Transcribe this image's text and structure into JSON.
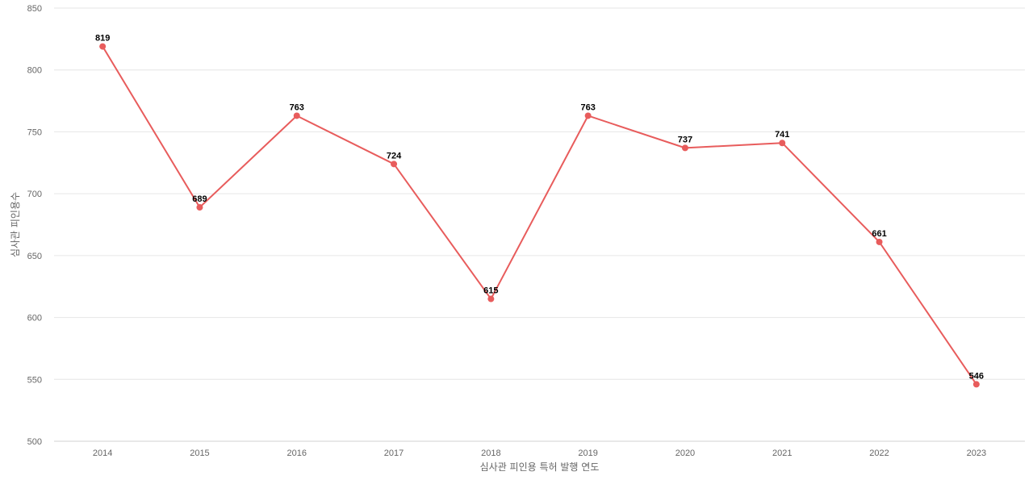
{
  "chart_data": {
    "type": "line",
    "title": "",
    "xlabel": "심사관 피인용 특허 발행 연도",
    "ylabel": "심사관 피인용수",
    "categories": [
      "2014",
      "2015",
      "2016",
      "2017",
      "2018",
      "2019",
      "2020",
      "2021",
      "2022",
      "2023"
    ],
    "series": [
      {
        "name": "",
        "values": [
          819,
          689,
          763,
          724,
          615,
          763,
          737,
          741,
          661,
          546
        ],
        "color": "#e85c5c"
      }
    ],
    "ylim": [
      500,
      850
    ],
    "yticks": [
      500,
      550,
      600,
      650,
      700,
      750,
      800,
      850
    ],
    "grid": true,
    "data_labels": true
  }
}
